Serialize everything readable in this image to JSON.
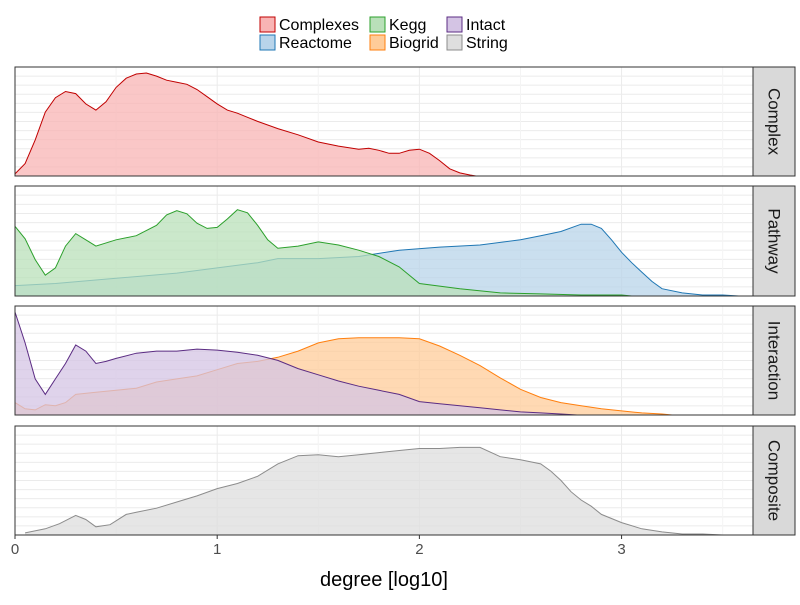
{
  "chart_data": {
    "type": "area",
    "xlabel": "degree [log10]",
    "ylabel": "",
    "xlim": [
      0,
      3.65
    ],
    "x_ticks": [
      "0",
      "1",
      "2",
      "3"
    ],
    "x_tick_values": [
      0,
      1,
      2,
      3
    ],
    "legend_placement": "top",
    "grid": true,
    "legend": [
      {
        "name": "Complexes",
        "color": "#F8B4B4",
        "stroke": "#C00000"
      },
      {
        "name": "Reactome",
        "color": "#B8D4EA",
        "stroke": "#1F77B4"
      },
      {
        "name": "Kegg",
        "color": "#B9E0B9",
        "stroke": "#2CA02C"
      },
      {
        "name": "Biogrid",
        "color": "#FFCC99",
        "stroke": "#FF7F0E"
      },
      {
        "name": "Intact",
        "color": "#D4C4E4",
        "stroke": "#5B2C83"
      },
      {
        "name": "String",
        "color": "#DEDEDE",
        "stroke": "#8C8C8C"
      }
    ],
    "panels": [
      {
        "label": "Complex",
        "series": [
          {
            "name": "Complexes",
            "x": [
              0,
              0.05,
              0.1,
              0.15,
              0.2,
              0.25,
              0.3,
              0.35,
              0.4,
              0.45,
              0.5,
              0.55,
              0.6,
              0.65,
              0.7,
              0.75,
              0.8,
              0.85,
              0.9,
              0.95,
              1.0,
              1.05,
              1.1,
              1.15,
              1.2,
              1.3,
              1.4,
              1.5,
              1.6,
              1.7,
              1.75,
              1.8,
              1.85,
              1.9,
              1.95,
              2.0,
              2.05,
              2.1,
              2.15,
              2.2,
              2.25,
              2.28
            ],
            "y": [
              0.02,
              0.12,
              0.35,
              0.62,
              0.76,
              0.82,
              0.8,
              0.7,
              0.64,
              0.72,
              0.86,
              0.95,
              0.99,
              1.0,
              0.97,
              0.93,
              0.91,
              0.89,
              0.84,
              0.77,
              0.7,
              0.64,
              0.61,
              0.57,
              0.53,
              0.46,
              0.4,
              0.33,
              0.29,
              0.26,
              0.27,
              0.25,
              0.22,
              0.22,
              0.25,
              0.26,
              0.22,
              0.15,
              0.07,
              0.03,
              0.01,
              0.0
            ]
          }
        ]
      },
      {
        "label": "Pathway",
        "series": [
          {
            "name": "Reactome",
            "x": [
              0,
              0.2,
              0.5,
              0.8,
              1.0,
              1.2,
              1.3,
              1.5,
              1.7,
              1.9,
              2.1,
              2.3,
              2.5,
              2.6,
              2.7,
              2.8,
              2.85,
              2.9,
              2.95,
              3.0,
              3.05,
              3.1,
              3.15,
              3.2,
              3.3,
              3.4,
              3.5,
              3.58
            ],
            "y": [
              0.1,
              0.12,
              0.17,
              0.22,
              0.27,
              0.32,
              0.36,
              0.36,
              0.38,
              0.44,
              0.47,
              0.49,
              0.54,
              0.58,
              0.62,
              0.69,
              0.69,
              0.65,
              0.54,
              0.42,
              0.32,
              0.23,
              0.14,
              0.07,
              0.03,
              0.01,
              0.01,
              0.0
            ]
          },
          {
            "name": "Kegg",
            "x": [
              0,
              0.05,
              0.1,
              0.15,
              0.2,
              0.25,
              0.3,
              0.35,
              0.4,
              0.5,
              0.6,
              0.7,
              0.75,
              0.8,
              0.85,
              0.9,
              0.95,
              1.0,
              1.05,
              1.1,
              1.15,
              1.2,
              1.25,
              1.3,
              1.4,
              1.5,
              1.6,
              1.7,
              1.8,
              1.9,
              2.0,
              2.2,
              2.4,
              2.6,
              2.8,
              3.0,
              3.05
            ],
            "y": [
              0.67,
              0.55,
              0.35,
              0.2,
              0.27,
              0.48,
              0.6,
              0.54,
              0.48,
              0.54,
              0.58,
              0.68,
              0.78,
              0.82,
              0.79,
              0.7,
              0.65,
              0.66,
              0.74,
              0.83,
              0.8,
              0.68,
              0.54,
              0.46,
              0.48,
              0.52,
              0.49,
              0.44,
              0.38,
              0.28,
              0.12,
              0.07,
              0.03,
              0.02,
              0.01,
              0.01,
              0.0
            ]
          }
        ]
      },
      {
        "label": "Interaction",
        "series": [
          {
            "name": "Biogrid",
            "x": [
              0,
              0.05,
              0.1,
              0.15,
              0.2,
              0.25,
              0.3,
              0.4,
              0.5,
              0.6,
              0.7,
              0.8,
              0.9,
              1.0,
              1.1,
              1.2,
              1.3,
              1.4,
              1.5,
              1.6,
              1.7,
              1.8,
              1.9,
              2.0,
              2.1,
              2.2,
              2.3,
              2.4,
              2.5,
              2.6,
              2.7,
              2.8,
              2.9,
              3.0,
              3.1,
              3.2,
              3.25
            ],
            "y": [
              0.12,
              0.06,
              0.05,
              0.1,
              0.09,
              0.12,
              0.2,
              0.22,
              0.24,
              0.26,
              0.32,
              0.35,
              0.38,
              0.44,
              0.5,
              0.52,
              0.56,
              0.62,
              0.7,
              0.74,
              0.75,
              0.75,
              0.75,
              0.74,
              0.67,
              0.58,
              0.48,
              0.36,
              0.25,
              0.17,
              0.12,
              0.09,
              0.06,
              0.04,
              0.02,
              0.01,
              0.0
            ]
          },
          {
            "name": "Intact",
            "x": [
              0,
              0.05,
              0.1,
              0.15,
              0.2,
              0.25,
              0.3,
              0.35,
              0.4,
              0.45,
              0.5,
              0.6,
              0.7,
              0.8,
              0.9,
              1.0,
              1.1,
              1.2,
              1.3,
              1.4,
              1.5,
              1.6,
              1.7,
              1.8,
              1.9,
              2.0,
              2.1,
              2.2,
              2.3,
              2.4,
              2.5,
              2.6,
              2.7,
              2.78
            ],
            "y": [
              1.0,
              0.7,
              0.35,
              0.2,
              0.35,
              0.5,
              0.68,
              0.62,
              0.5,
              0.52,
              0.55,
              0.6,
              0.62,
              0.62,
              0.64,
              0.63,
              0.61,
              0.58,
              0.53,
              0.45,
              0.39,
              0.33,
              0.28,
              0.24,
              0.2,
              0.13,
              0.11,
              0.09,
              0.07,
              0.05,
              0.03,
              0.02,
              0.01,
              0.0
            ]
          }
        ]
      },
      {
        "label": "Composite",
        "series": [
          {
            "name": "String",
            "x": [
              0.05,
              0.15,
              0.22,
              0.3,
              0.35,
              0.4,
              0.47,
              0.55,
              0.6,
              0.7,
              0.8,
              0.9,
              1.0,
              1.1,
              1.2,
              1.3,
              1.4,
              1.5,
              1.6,
              1.7,
              1.8,
              1.9,
              2.0,
              2.1,
              2.2,
              2.3,
              2.4,
              2.5,
              2.6,
              2.65,
              2.7,
              2.75,
              2.8,
              2.85,
              2.9,
              3.0,
              3.1,
              3.2,
              3.3,
              3.4,
              3.5,
              3.6
            ],
            "y": [
              0.02,
              0.06,
              0.11,
              0.19,
              0.15,
              0.08,
              0.1,
              0.2,
              0.22,
              0.26,
              0.32,
              0.38,
              0.45,
              0.5,
              0.57,
              0.69,
              0.77,
              0.78,
              0.76,
              0.78,
              0.8,
              0.82,
              0.84,
              0.84,
              0.85,
              0.85,
              0.76,
              0.73,
              0.69,
              0.62,
              0.53,
              0.42,
              0.34,
              0.28,
              0.2,
              0.12,
              0.06,
              0.03,
              0.01,
              0.01,
              0.0,
              0.0
            ]
          }
        ]
      }
    ]
  }
}
